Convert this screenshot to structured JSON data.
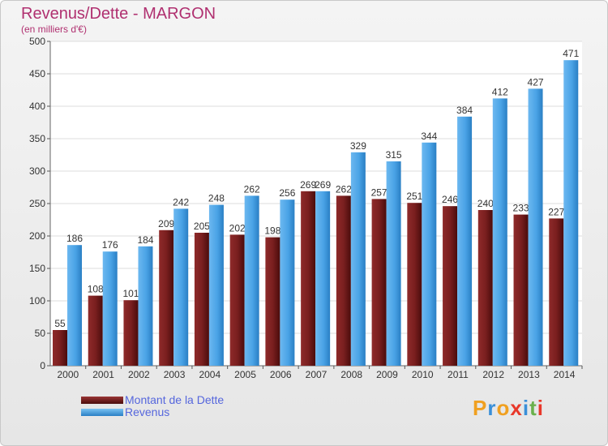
{
  "chart_data": {
    "type": "bar",
    "title": "Revenus/Dette - MARGON",
    "subtitle": "(en milliers d'€)",
    "categories": [
      "2000",
      "2001",
      "2002",
      "2003",
      "2004",
      "2005",
      "2006",
      "2007",
      "2008",
      "2009",
      "2010",
      "2011",
      "2012",
      "2013",
      "2014"
    ],
    "series": [
      {
        "name": "Montant de la Dette",
        "color": "#7a1f1f",
        "values": [
          55,
          108,
          101,
          209,
          205,
          202,
          198,
          269,
          262,
          257,
          251,
          246,
          240,
          233,
          227
        ]
      },
      {
        "name": "Revenus",
        "color": "#4aa3e6",
        "values": [
          186,
          176,
          184,
          242,
          248,
          262,
          256,
          269,
          329,
          315,
          344,
          384,
          412,
          427,
          471
        ]
      }
    ],
    "ylim": [
      0,
      500
    ],
    "yticks": [
      0,
      50,
      100,
      150,
      200,
      250,
      300,
      350,
      400,
      450,
      500
    ],
    "grid": true,
    "legend_position": "bottom-left"
  },
  "brand": {
    "letters": [
      "P",
      "r",
      "o",
      "x",
      "i",
      "t",
      "i"
    ],
    "colors": [
      "#f0a020",
      "#3a8fd8",
      "#f0a020",
      "#e8382a",
      "#3a8fd8",
      "#6ab04c",
      "#e8382a"
    ]
  }
}
